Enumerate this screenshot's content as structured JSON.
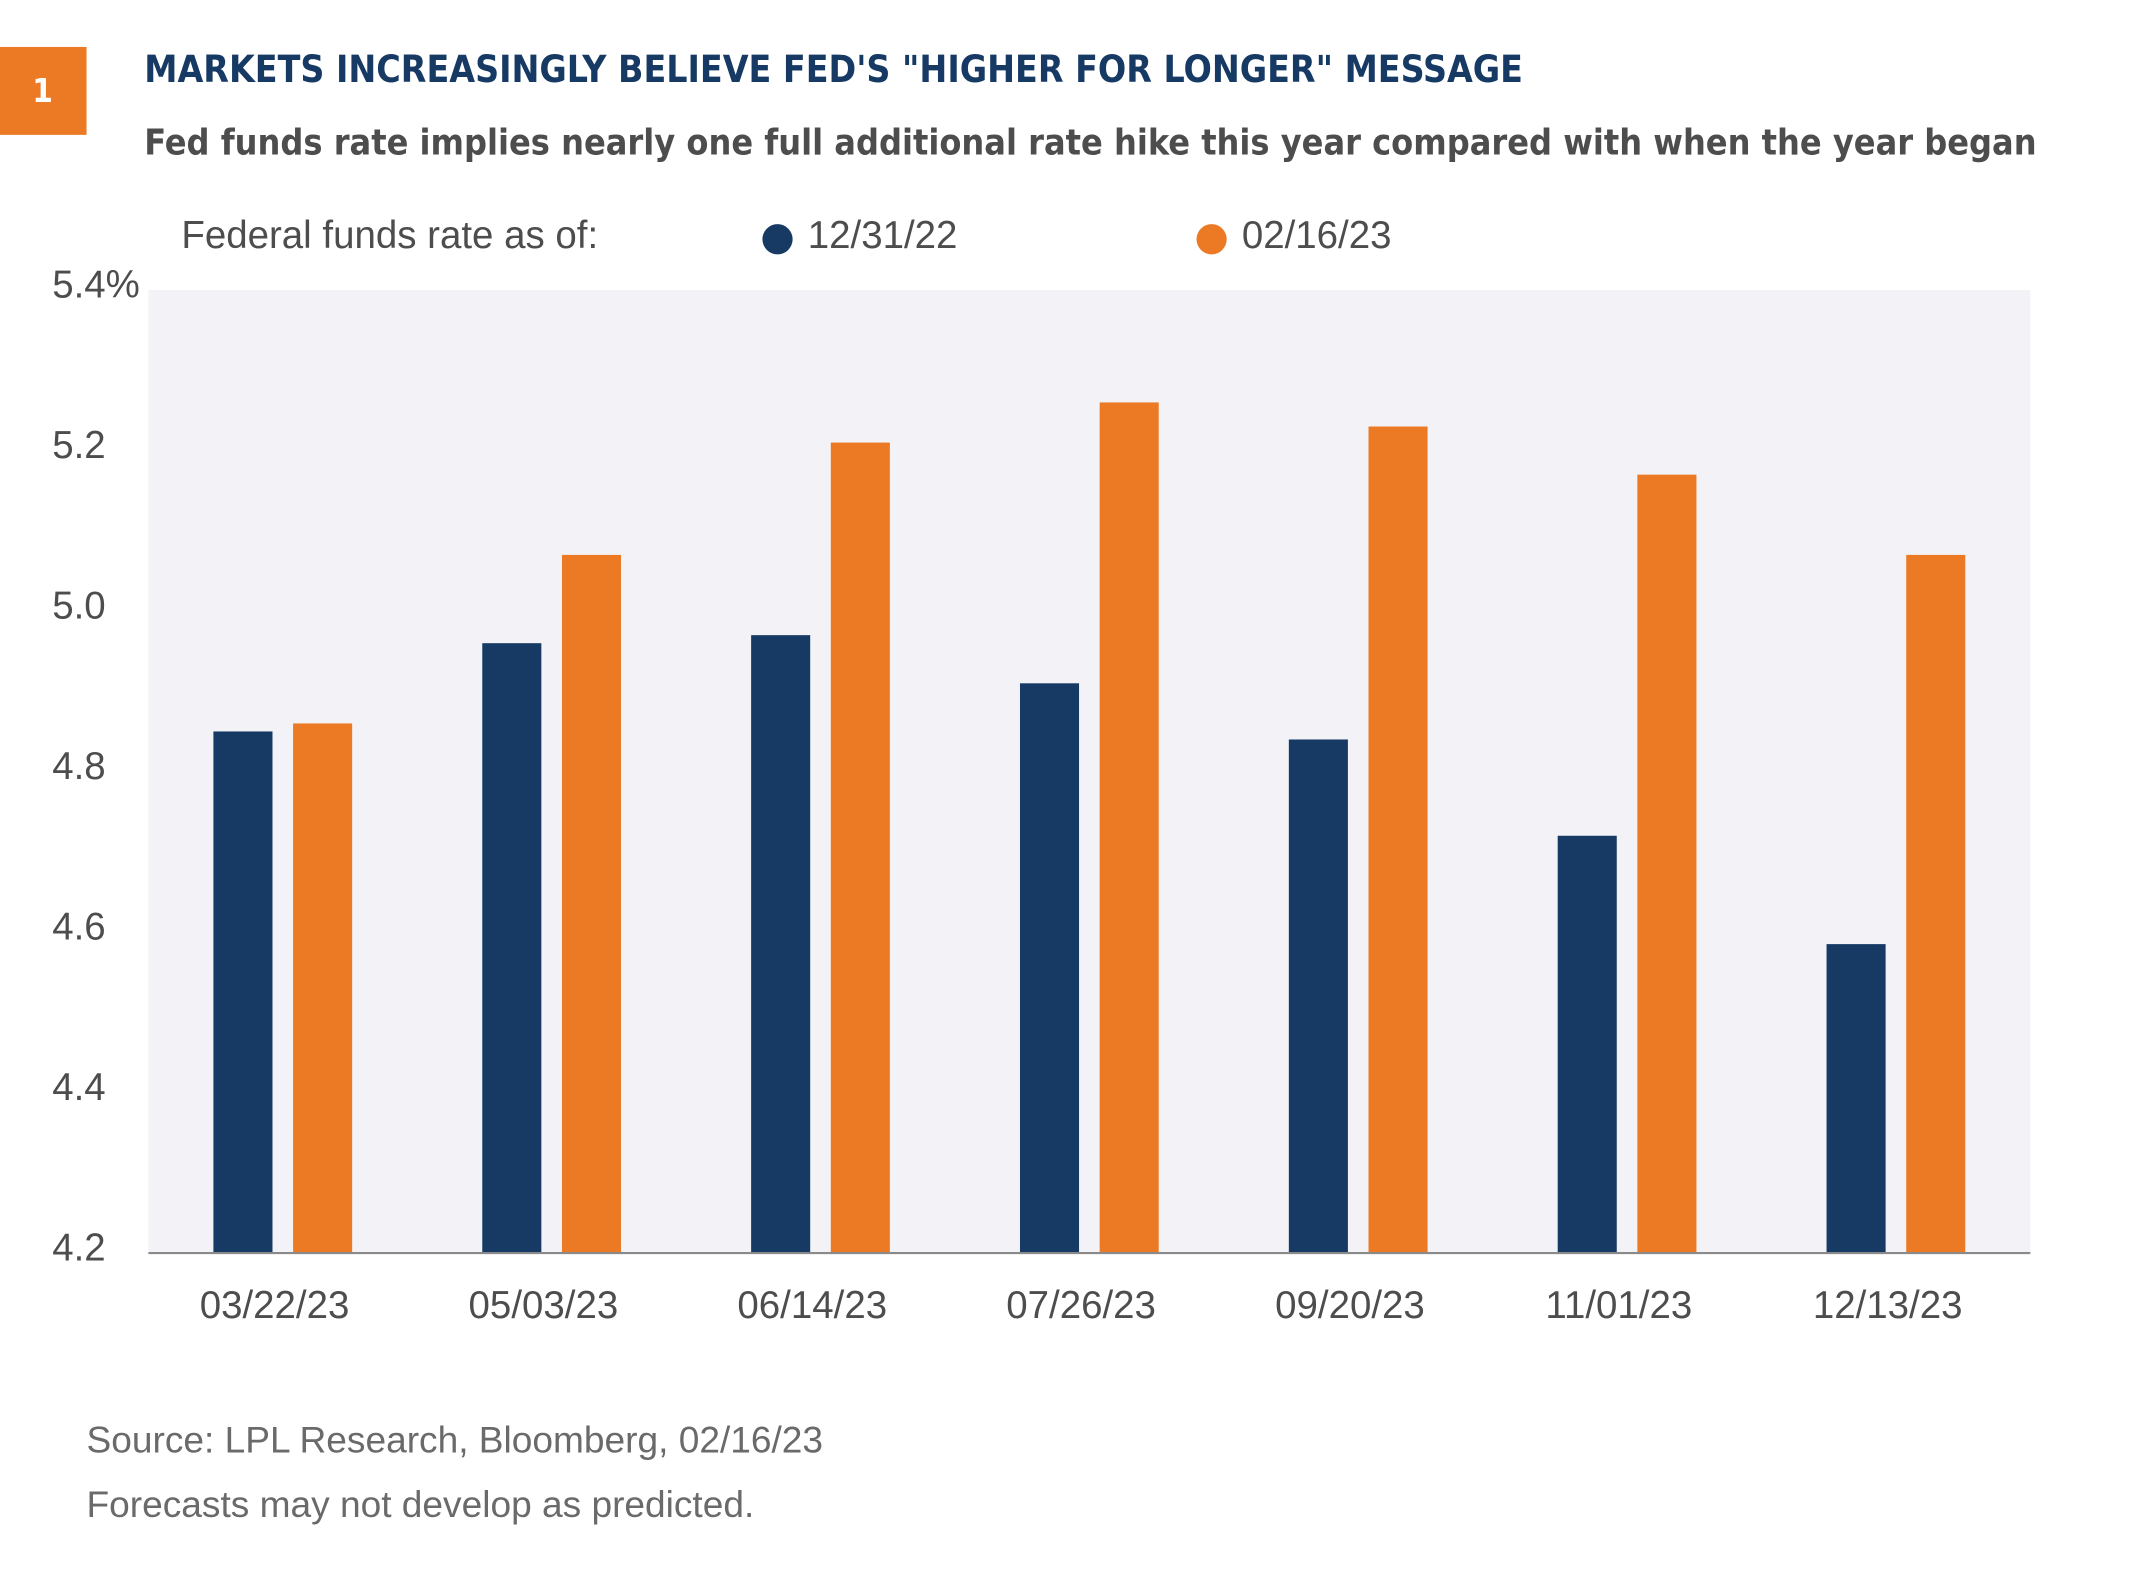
{
  "chart_data": {
    "type": "bar",
    "badge": "1",
    "title": "MARKETS INCREASINGLY BELIEVE FED'S \"HIGHER FOR LONGER\" MESSAGE",
    "subtitle": "Fed funds rate implies nearly one full additional rate hike this year compared with when the year began",
    "legend_title": "Federal funds rate as of:",
    "categories": [
      "03/22/23",
      "05/03/23",
      "06/14/23",
      "07/26/23",
      "09/20/23",
      "11/01/23",
      "12/13/23"
    ],
    "series": [
      {
        "name": "12/31/22",
        "color": "#163a64",
        "values": [
          4.85,
          4.96,
          4.97,
          4.91,
          4.84,
          4.72,
          4.585
        ]
      },
      {
        "name": "02/16/23",
        "color": "#ec7a25",
        "values": [
          4.86,
          5.07,
          5.21,
          5.26,
          5.23,
          5.17,
          5.07
        ]
      }
    ],
    "ylim": [
      4.2,
      5.4
    ],
    "yticks": [
      4.2,
      4.4,
      4.6,
      4.8,
      {
        "value": 5.0,
        "label": "5.0"
      },
      5.2,
      {
        "value": 5.4,
        "label": "5.4%"
      }
    ],
    "grid": false,
    "footnotes": [
      "Source: LPL Research, Bloomberg, 02/16/23",
      "Forecasts may not develop as predicted."
    ]
  }
}
